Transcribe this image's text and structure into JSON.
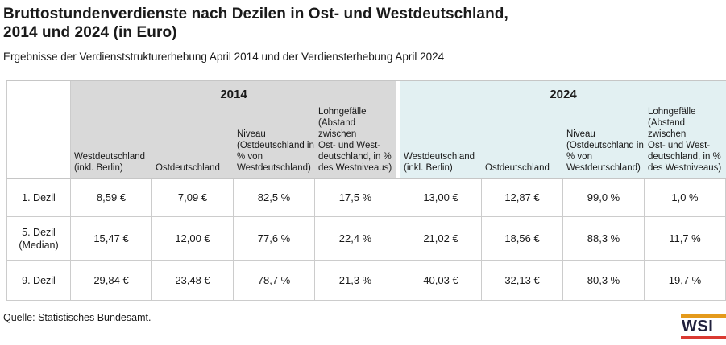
{
  "header": {
    "title": "Bruttostundenverdienste nach Dezilen in Ost- und Westdeutschland,\n2014 und 2024 (in Euro)",
    "subtitle": "Ergebnisse der Verdienststrukturerhebung April 2014 und der Verdiensterhebung April 2024"
  },
  "table": {
    "year_groups": [
      {
        "label": "2014",
        "color": "#d9d9d9"
      },
      {
        "label": "2024",
        "color": "#e2f0f2"
      }
    ],
    "column_headers": [
      "Westdeutschland\n(inkl. Berlin)",
      "Ostdeutschland",
      "Niveau\n(Ostdeutschland in\n% von\nWestdeutschland)",
      "Lohngefälle\n(Abstand zwischen\nOst- und West-\ndeutschland, in %\ndes Westniveaus)"
    ],
    "rows": [
      {
        "label": "1. Dezil",
        "values": [
          "8,59 €",
          "7,09 €",
          "82,5 %",
          "17,5 %",
          "13,00 €",
          "12,87 €",
          "99,0 %",
          "1,0 %"
        ]
      },
      {
        "label": "5. Dezil\n(Median)",
        "values": [
          "15,47 €",
          "12,00 €",
          "77,6 %",
          "22,4 %",
          "21,02 €",
          "18,56 €",
          "88,3 %",
          "11,7 %"
        ]
      },
      {
        "label": "9. Dezil",
        "values": [
          "29,84 €",
          "23,48 €",
          "78,7 %",
          "21,3 %",
          "40,03 €",
          "32,13 €",
          "80,3 %",
          "19,7 %"
        ]
      }
    ]
  },
  "footer": {
    "source": "Quelle: Statistisches Bundesamt.",
    "logo_text": "WSI"
  },
  "colors": {
    "band_2014": "#d9d9d9",
    "band_2024": "#e2f0f2",
    "cell_border": "#cccccc",
    "text": "#1a1a1a",
    "wsi_orange": "#e49a1c",
    "wsi_red": "#da3931",
    "wsi_text": "#20203c"
  },
  "chart_data": {
    "type": "table",
    "title": "Bruttostundenverdienste nach Dezilen in Ost- und Westdeutschland, 2014 und 2024 (in Euro)",
    "subtitle": "Ergebnisse der Verdienststrukturerhebung April 2014 und der Verdiensterhebung April 2024",
    "column_groups": [
      {
        "year": "2014",
        "columns": [
          "Westdeutschland (inkl. Berlin)",
          "Ostdeutschland",
          "Niveau (Ostdeutschland in % von Westdeutschland)",
          "Lohngefälle (Abstand zwischen Ost- und Westdeutschland, in % des Westniveaus)"
        ]
      },
      {
        "year": "2024",
        "columns": [
          "Westdeutschland (inkl. Berlin)",
          "Ostdeutschland",
          "Niveau (Ostdeutschland in % von Westdeutschland)",
          "Lohngefälle (Abstand zwischen Ost- und Westdeutschland, in % des Westniveaus)"
        ]
      }
    ],
    "rows": [
      {
        "label": "1. Dezil",
        "y2014": {
          "west_eur": 8.59,
          "ost_eur": 7.09,
          "niveau_pct": 82.5,
          "lohngefaelle_pct": 17.5
        },
        "y2024": {
          "west_eur": 13.0,
          "ost_eur": 12.87,
          "niveau_pct": 99.0,
          "lohngefaelle_pct": 1.0
        }
      },
      {
        "label": "5. Dezil (Median)",
        "y2014": {
          "west_eur": 15.47,
          "ost_eur": 12.0,
          "niveau_pct": 77.6,
          "lohngefaelle_pct": 22.4
        },
        "y2024": {
          "west_eur": 21.02,
          "ost_eur": 18.56,
          "niveau_pct": 88.3,
          "lohngefaelle_pct": 11.7
        }
      },
      {
        "label": "9. Dezil",
        "y2014": {
          "west_eur": 29.84,
          "ost_eur": 23.48,
          "niveau_pct": 78.7,
          "lohngefaelle_pct": 21.3
        },
        "y2024": {
          "west_eur": 40.03,
          "ost_eur": 32.13,
          "niveau_pct": 80.3,
          "lohngefaelle_pct": 19.7
        }
      }
    ],
    "source": "Quelle: Statistisches Bundesamt."
  }
}
